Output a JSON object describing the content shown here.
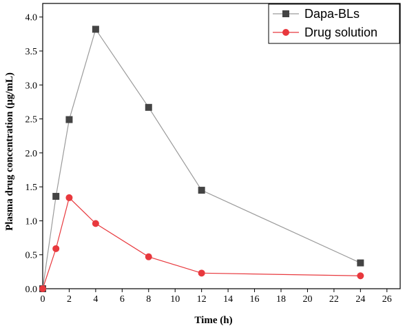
{
  "chart_data": {
    "type": "line",
    "xlabel": "Time (h)",
    "ylabel": "Plasma drug concentration (μg/mL)",
    "xlim": [
      0,
      27
    ],
    "ylim": [
      0,
      4.2
    ],
    "xticks": [
      0,
      2,
      4,
      6,
      8,
      10,
      12,
      14,
      16,
      18,
      20,
      22,
      24,
      26
    ],
    "yticks": [
      0.0,
      0.5,
      1.0,
      1.5,
      2.0,
      2.5,
      3.0,
      3.5,
      4.0
    ],
    "legend_position": "top-right",
    "grid": false,
    "series": [
      {
        "name": "Dapa-BLs",
        "marker": "square",
        "color": "#444444",
        "line_color": "#9a9a9a",
        "x": [
          0,
          1,
          2,
          4,
          8,
          12,
          24
        ],
        "y": [
          0,
          1.36,
          2.49,
          3.82,
          2.67,
          1.45,
          0.38
        ]
      },
      {
        "name": "Drug solution",
        "marker": "circle",
        "color": "#e8383d",
        "line_color": "#e8383d",
        "x": [
          0,
          1,
          2,
          4,
          8,
          12,
          24
        ],
        "y": [
          0,
          0.59,
          1.34,
          0.96,
          0.47,
          0.23,
          0.19
        ]
      }
    ]
  }
}
